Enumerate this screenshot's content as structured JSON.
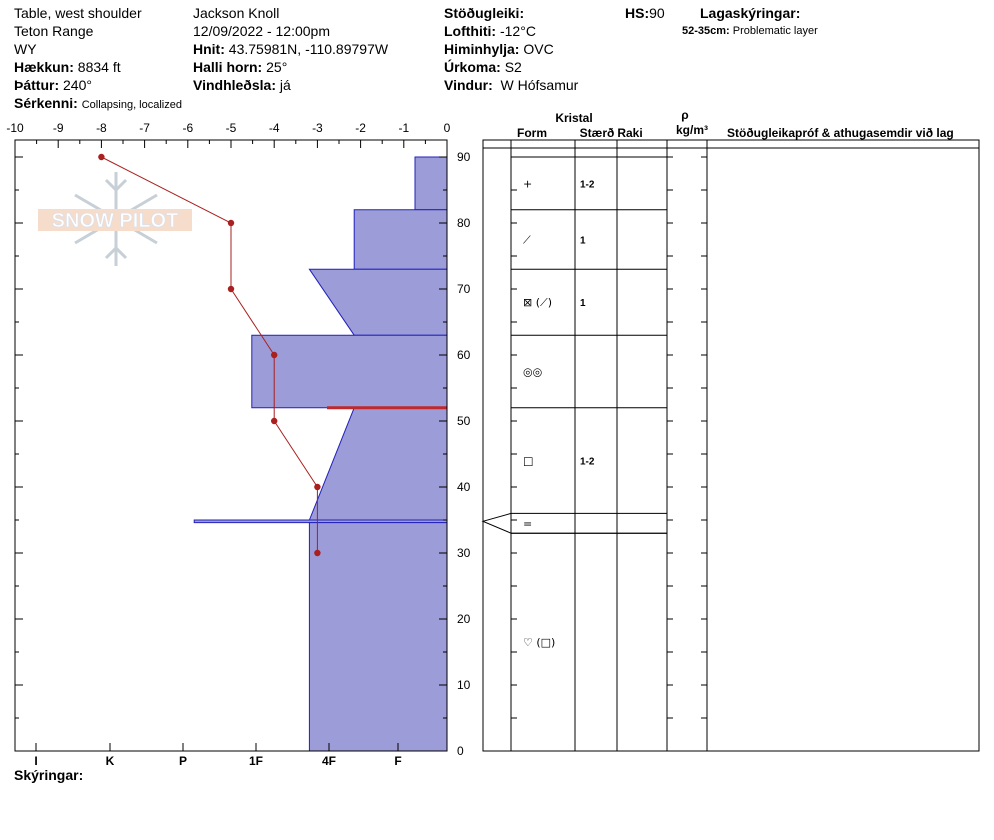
{
  "header": {
    "location": "Table, west shoulder",
    "range": "Teton Range",
    "state": "WY",
    "elevation_label": "Hækkun:",
    "elevation_value": "8834 ft",
    "aspect_label": "Þáttur:",
    "aspect_value": "240°",
    "features_label": "Sérkenni:",
    "features_value": "Collapsing, localized",
    "observer": "Jackson Knoll",
    "datetime": "12/09/2022 - 12:00pm",
    "coords_label": "Hnit:",
    "coords_value": "43.75981N, -110.89797W",
    "slope_label": "Halli horn:",
    "slope_value": "25°",
    "wind_loading_label": "Vindhleðsla:",
    "wind_loading_value": "já",
    "stability_label": "Stöðugleiki:",
    "air_temp_label": "Lofthiti:",
    "air_temp_value": "-12°C",
    "sky_label": "Himinhylja:",
    "sky_value": "OVC",
    "precip_label": "Úrkoma:",
    "precip_value": "S2",
    "wind_label": "Vindur:",
    "wind_value": "W Hófsamur",
    "hs_label": "HS:",
    "hs_value": "90",
    "layer_notes_label": "Lagaskýringar:",
    "layer_note_range": "52-35cm:",
    "layer_note_text": "Problematic layer"
  },
  "footer": {
    "notes_label": "Skýringar:"
  },
  "logo": {
    "text": "SNOW PILOT"
  },
  "table": {
    "crystal_label": "Kristal",
    "form_label": "Form",
    "size_label": "Stærð",
    "moisture_label": "Raki",
    "density_symbol": "ρ",
    "density_unit": "kg/m³",
    "tests_label": "Stöðugleikapróf & athugasemdir við lag"
  },
  "colors": {
    "hardness_fill": "#9c9cd8",
    "hardness_stroke": "#2222bb",
    "temp_line": "#aa1f1f",
    "problem_layer": "#c0282a"
  },
  "chart_data": {
    "type": "snow-profile",
    "temperature_axis": {
      "ticks": [
        "-10",
        "-9",
        "-8",
        "-7",
        "-6",
        "-5",
        "-4",
        "-3",
        "-2",
        "-1",
        "0"
      ],
      "range": [
        -10,
        0
      ]
    },
    "depth_axis": {
      "ticks": [
        "0",
        "10",
        "20",
        "30",
        "40",
        "50",
        "60",
        "70",
        "80",
        "90"
      ],
      "range": [
        0,
        90
      ],
      "unit": "cm"
    },
    "hardness_axis": {
      "ticks": [
        "I",
        "K",
        "P",
        "1F",
        "4F",
        "F"
      ]
    },
    "temperature_profile": [
      {
        "depth": 90,
        "temp": -8
      },
      {
        "depth": 80,
        "temp": -5
      },
      {
        "depth": 70,
        "temp": -5
      },
      {
        "depth": 60,
        "temp": -4
      },
      {
        "depth": 50,
        "temp": -4
      },
      {
        "depth": 40,
        "temp": -3
      },
      {
        "depth": 30,
        "temp": -3
      }
    ],
    "hardness_profile": [
      {
        "top": 90,
        "bottom": 82,
        "hardness": 1.0
      },
      {
        "top": 82,
        "bottom": 73,
        "hardness": 2.9
      },
      {
        "top": 73,
        "bottom": 63,
        "hardness_top": 4.3,
        "hardness_bottom": 2.9
      },
      {
        "top": 63,
        "bottom": 52,
        "hardness": 6.1
      },
      {
        "top": 52,
        "bottom": 35,
        "hardness_top": 2.9,
        "hardness_bottom": 4.3
      },
      {
        "top": 35,
        "bottom": 34.6,
        "hardness": 7.9
      },
      {
        "top": 34.6,
        "bottom": 0,
        "hardness": 4.3
      }
    ],
    "problem_layer_depth": 52,
    "layers": [
      {
        "top": 90,
        "bottom": 82,
        "form": "+",
        "size": "1-2"
      },
      {
        "top": 82,
        "bottom": 73,
        "form": "⟋",
        "size": "1"
      },
      {
        "top": 73,
        "bottom": 63,
        "form": "⊠ (⟋)",
        "size": "1"
      },
      {
        "top": 63,
        "bottom": 52,
        "form": "◎◎",
        "size": ""
      },
      {
        "top": 52,
        "bottom": 36,
        "form": "□",
        "size": "1-2"
      },
      {
        "top": 36,
        "bottom": 33,
        "form": "=",
        "size": ""
      },
      {
        "top": 33,
        "bottom": 0,
        "form": "♡ (□)",
        "size": ""
      }
    ]
  }
}
